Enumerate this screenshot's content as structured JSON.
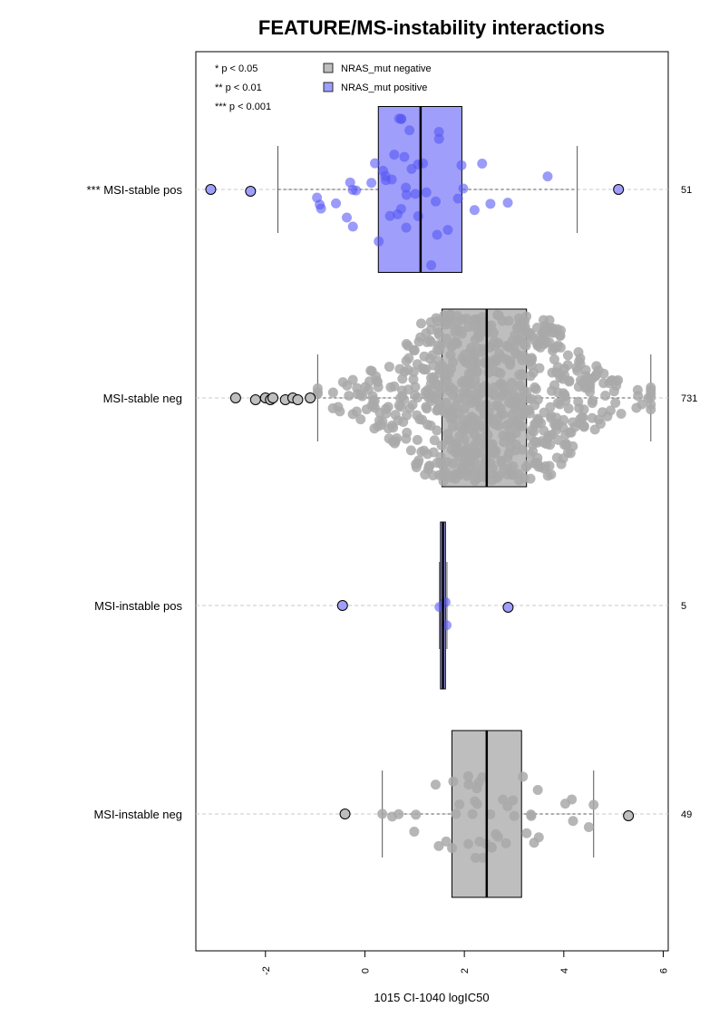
{
  "chart_data": {
    "type": "box",
    "title": "FEATURE/MS-instability interactions",
    "xlabel": "1015 CI-1040 logIC50",
    "xlim": [
      -3.4,
      6.1
    ],
    "x_ticks": [
      "-2",
      "0",
      "2",
      "4",
      "6"
    ],
    "x_tick_values": [
      -2,
      0,
      2,
      4,
      6
    ],
    "significance_notes": [
      "* p < 0.05",
      "** p < 0.01",
      "*** p < 0.001"
    ],
    "legend": [
      {
        "label": "NRAS_mut negative",
        "color": "#bebebe"
      },
      {
        "label": "NRAS_mut positive",
        "color": "#9f9ffb"
      }
    ],
    "colors": {
      "negative_box": "#bebebe",
      "positive_box": "#9f9ffb",
      "negative_point": "#a9a9a9",
      "positive_point": "#5858f5"
    },
    "groups": [
      {
        "label": "*** MSI-stable pos",
        "count": "51",
        "mutation": "positive",
        "whisker_low": -1.75,
        "q1": 0.27,
        "median": 1.12,
        "q3": 1.95,
        "whisker_high": 4.27,
        "outliers": [
          -3.1,
          -2.3,
          5.1
        ],
        "n_points": 51,
        "spread": 0.55
      },
      {
        "label": "MSI-stable neg",
        "count": "731",
        "mutation": "negative",
        "whisker_low": -0.95,
        "q1": 1.55,
        "median": 2.45,
        "q3": 3.25,
        "whisker_high": 5.75,
        "outliers": [
          -2.6,
          -2.2,
          -2.0,
          -1.9,
          -1.85,
          -1.6,
          -1.45,
          -1.35,
          -1.1
        ],
        "n_points": 731,
        "spread": 0.95
      },
      {
        "label": "MSI-instable pos",
        "count": "5",
        "mutation": "positive",
        "whisker_low": 1.5,
        "q1": 1.52,
        "median": 1.57,
        "q3": 1.62,
        "whisker_high": 1.65,
        "outliers": [
          -0.45,
          2.88
        ],
        "n_points": 5,
        "spread": 0.12
      },
      {
        "label": "MSI-instable neg",
        "count": "49",
        "mutation": "negative",
        "whisker_low": 0.35,
        "q1": 1.75,
        "median": 2.45,
        "q3": 3.15,
        "whisker_high": 4.6,
        "outliers": [
          -0.4,
          5.3
        ],
        "n_points": 49,
        "spread": 0.3
      }
    ]
  }
}
